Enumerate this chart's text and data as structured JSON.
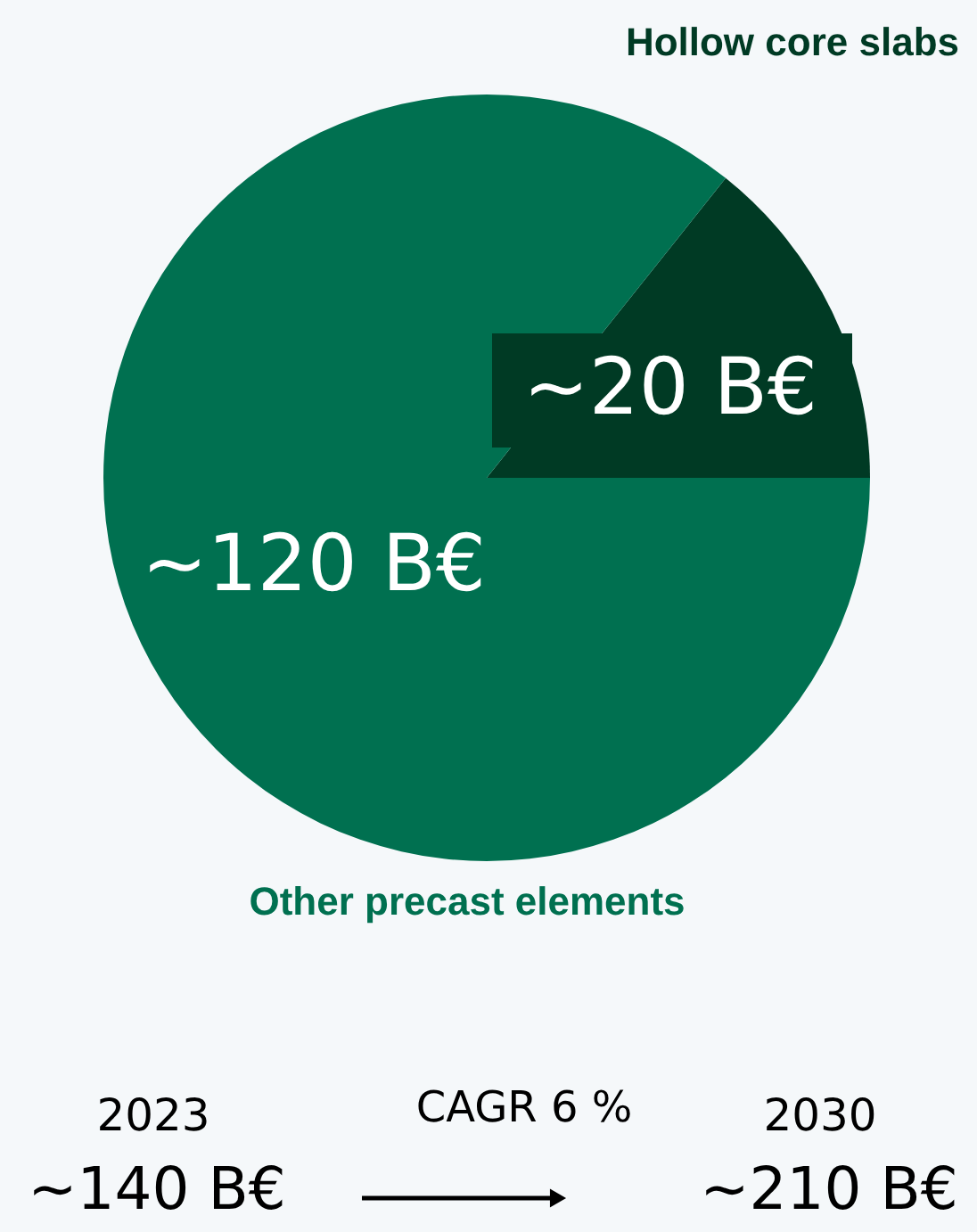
{
  "chart_data": {
    "type": "pie",
    "categories": [
      "Hollow core slabs",
      "Other precast elements"
    ],
    "values": [
      20,
      120
    ],
    "value_labels": [
      "~20 B€",
      "~120 B€"
    ],
    "colors": [
      "#003a24",
      "#007050"
    ],
    "annotations": [
      "2023",
      "~140 B€",
      "CAGR 6 %",
      "2030",
      "~210 B€"
    ]
  }
}
